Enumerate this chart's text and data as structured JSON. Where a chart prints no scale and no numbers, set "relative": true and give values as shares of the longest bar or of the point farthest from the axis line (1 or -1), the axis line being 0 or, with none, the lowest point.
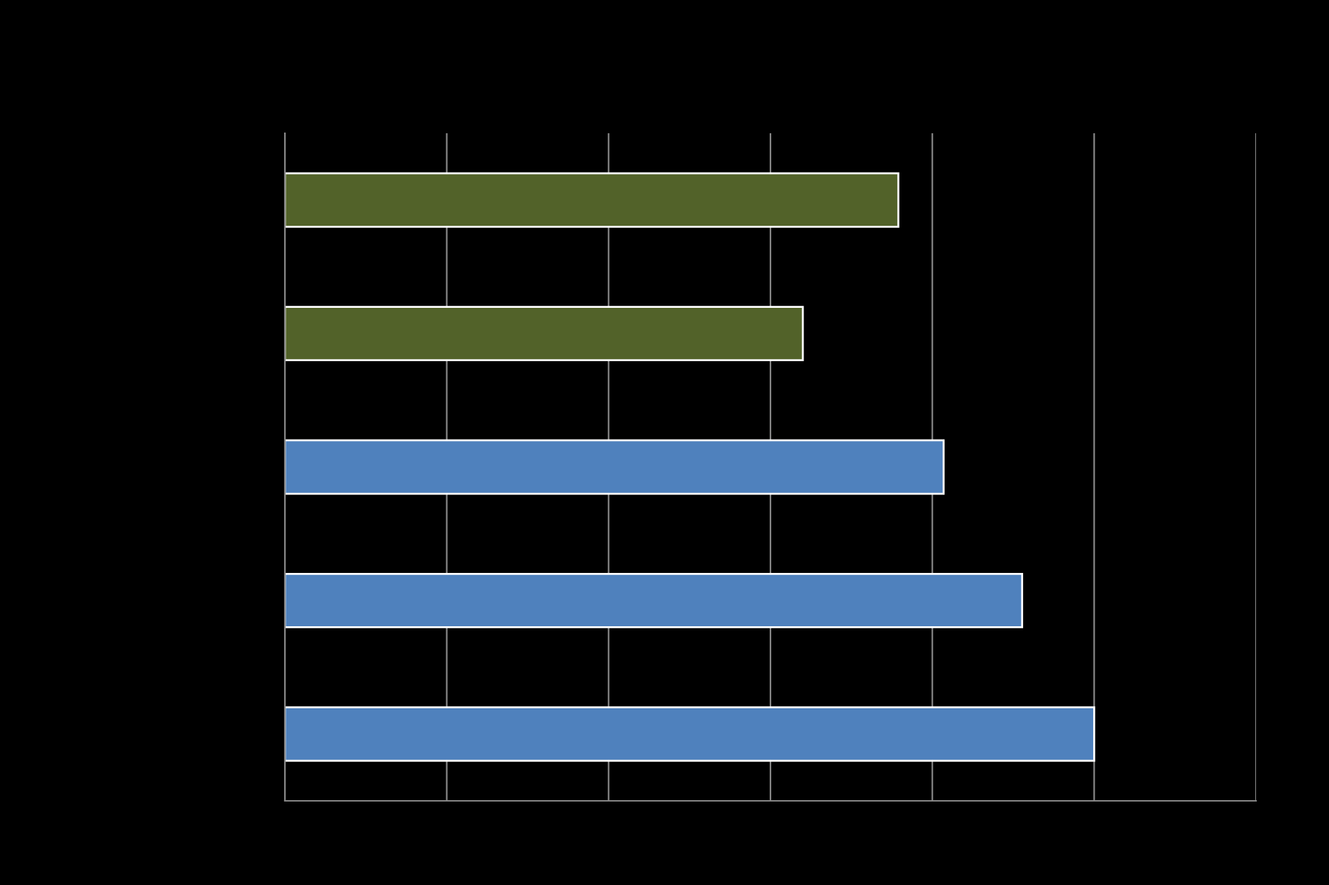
{
  "chart_data": {
    "type": "bar",
    "orientation": "horizontal",
    "relative": true,
    "categories": [
      null,
      null,
      null,
      null,
      null
    ],
    "values": [
      0.758,
      0.64,
      0.814,
      0.911,
      1
    ],
    "colors": [
      "#526229",
      "#526229",
      "#4f81bd",
      "#4f81bd",
      "#4f81bd"
    ],
    "grid": "x",
    "tick_labels": false
  }
}
